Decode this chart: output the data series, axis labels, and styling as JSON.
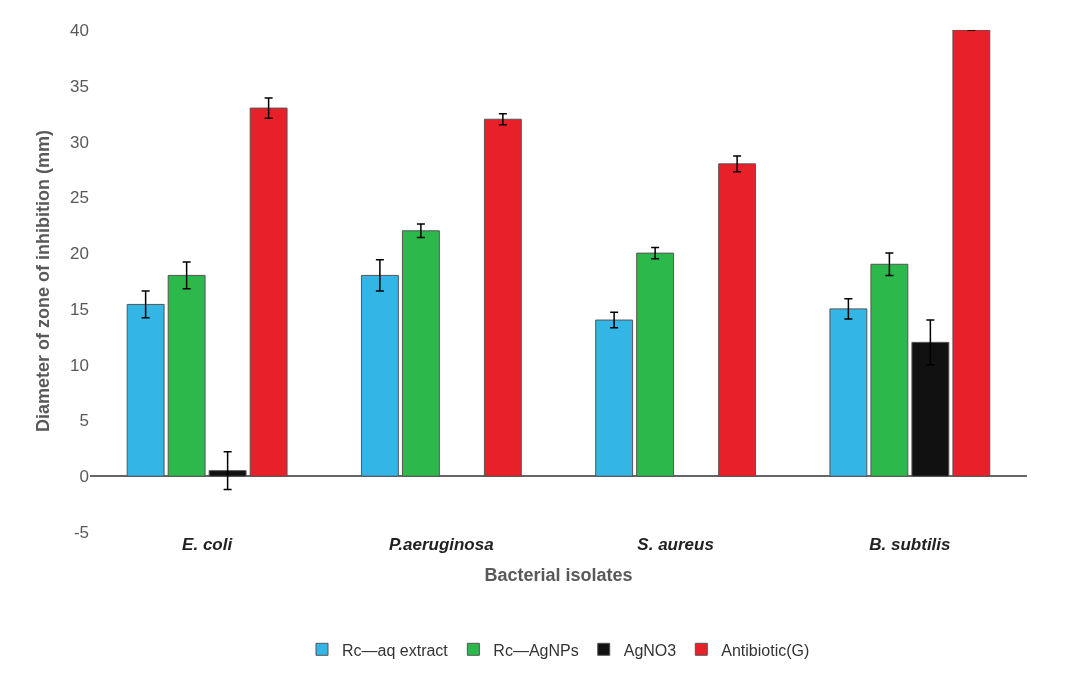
{
  "chart_data": {
    "type": "bar",
    "xlabel": "Bacterial isolates",
    "ylabel": "Diameter of zone of inhibition (mm)",
    "categories": [
      "E. coli",
      "P.aeruginosa",
      "S. aureus",
      "B. subtilis"
    ],
    "series": [
      {
        "name": "Rc—aq extract",
        "color": "#33b5e5",
        "values": [
          15.4,
          18,
          14,
          15
        ],
        "errors": [
          1.2,
          1.4,
          0.7,
          0.9
        ]
      },
      {
        "name": "Rc—AgNPs",
        "color": "#2db84b",
        "values": [
          18,
          22,
          20,
          19
        ],
        "errors": [
          1.2,
          0.6,
          0.5,
          1
        ]
      },
      {
        "name": "AgNO3",
        "color": "#111111",
        "values": [
          0.5,
          null,
          null,
          12
        ],
        "errors": [
          1.7,
          null,
          null,
          2
        ]
      },
      {
        "name": "Antibiotic(G)",
        "color": "#e8202a",
        "values": [
          33,
          32,
          28,
          40
        ],
        "errors": [
          0.9,
          0.5,
          0.7,
          null
        ]
      }
    ],
    "ylim": [
      -5,
      40
    ],
    "yticks": [
      -5,
      0,
      5,
      10,
      15,
      20,
      25,
      30,
      35,
      40
    ],
    "legend": "bottom"
  }
}
